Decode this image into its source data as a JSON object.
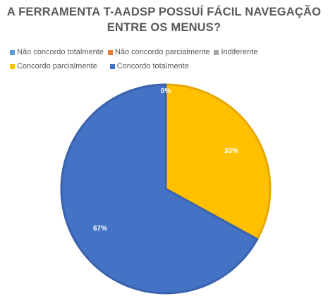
{
  "chart_data": {
    "type": "pie",
    "title_lines": [
      "A FERRAMENTA T-AADSP POSSUÍ FÁCIL NAVEGAÇÃO",
      "ENTRE OS MENUS?"
    ],
    "categories": [
      "Não concordo totalmente",
      "Não concordo parcialmente",
      "Indiferente",
      "Concordo parcialmente",
      "Concordo totalmente"
    ],
    "values": [
      0,
      0,
      0,
      33,
      67
    ],
    "data_labels": [
      "",
      "",
      "0%",
      "33%",
      "67%"
    ],
    "colors": [
      "#5B9BD5",
      "#ED7D31",
      "#A5A5A5",
      "#FFC000",
      "#4472C4"
    ],
    "legend_position": "top",
    "start_angle_deg": 0,
    "direction": "clockwise"
  }
}
